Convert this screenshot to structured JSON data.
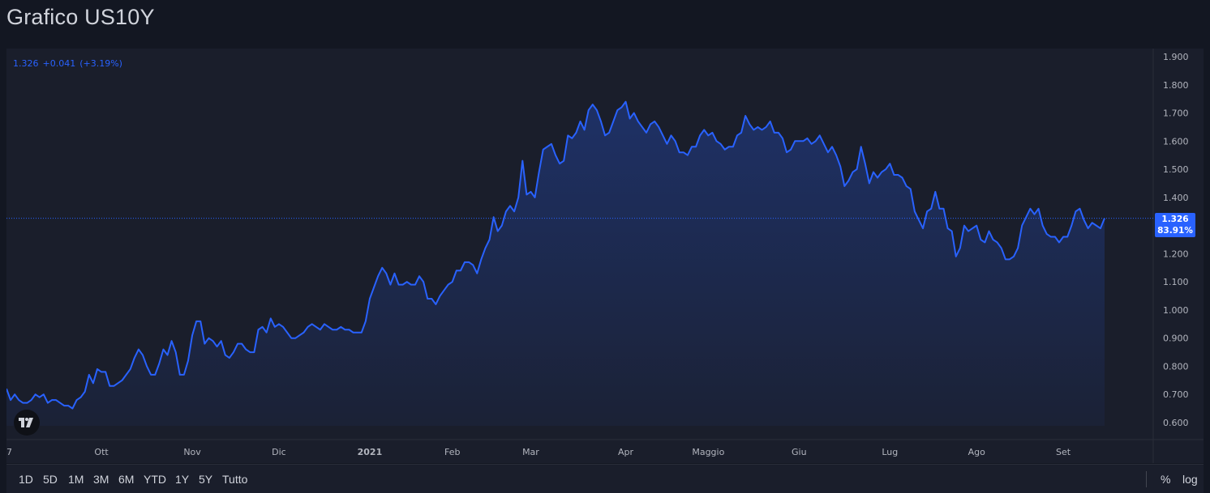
{
  "header": {
    "title": "Grafico US10Y"
  },
  "legend": {
    "value": "1.326",
    "change": "+0.041",
    "change_pct": "(+3.19%)"
  },
  "badge": {
    "price": "1.326",
    "percent": "83.91%"
  },
  "colors": {
    "line": "#2962ff",
    "background": "#131722",
    "panel": "#1a1e2b",
    "text": "#b2b5be"
  },
  "range_buttons": [
    "1D",
    "5D",
    "1M",
    "3M",
    "6M",
    "YTD",
    "1Y",
    "5Y",
    "Tutto"
  ],
  "right_controls": {
    "percent": "%",
    "log": "log"
  },
  "logo": {
    "icon": "tradingview-logo-icon"
  },
  "chart_data": {
    "type": "area",
    "title": "Grafico US10Y",
    "xlabel": "",
    "ylabel": "",
    "ylim": [
      0.55,
      1.95
    ],
    "y_ticks": [
      "1.900",
      "1.800",
      "1.700",
      "1.600",
      "1.500",
      "1.400",
      "1.300",
      "1.200",
      "1.100",
      "1.000",
      "0.900",
      "0.800",
      "0.700",
      "0.600"
    ],
    "x_tick_labels": [
      "7",
      "Ott",
      "Nov",
      "Dic",
      "2021",
      "Feb",
      "Mar",
      "Apr",
      "Maggio",
      "Giu",
      "Lug",
      "Ago",
      "Set"
    ],
    "x_tick_index": [
      0,
      23,
      45,
      66,
      88,
      108,
      127,
      150,
      170,
      192,
      214,
      235,
      256
    ],
    "last_value": 1.326,
    "grid": false,
    "series": [
      {
        "values": [
          0.72,
          0.68,
          0.7,
          0.68,
          0.67,
          0.67,
          0.68,
          0.7,
          0.69,
          0.7,
          0.67,
          0.68,
          0.68,
          0.67,
          0.66,
          0.66,
          0.65,
          0.68,
          0.69,
          0.71,
          0.77,
          0.74,
          0.79,
          0.78,
          0.78,
          0.73,
          0.73,
          0.74,
          0.75,
          0.77,
          0.79,
          0.83,
          0.86,
          0.84,
          0.8,
          0.77,
          0.77,
          0.81,
          0.86,
          0.84,
          0.89,
          0.85,
          0.77,
          0.77,
          0.82,
          0.91,
          0.96,
          0.96,
          0.88,
          0.9,
          0.89,
          0.87,
          0.89,
          0.84,
          0.83,
          0.85,
          0.88,
          0.88,
          0.86,
          0.85,
          0.85,
          0.93,
          0.94,
          0.92,
          0.97,
          0.94,
          0.95,
          0.94,
          0.92,
          0.9,
          0.9,
          0.91,
          0.92,
          0.94,
          0.95,
          0.94,
          0.93,
          0.95,
          0.94,
          0.93,
          0.93,
          0.94,
          0.93,
          0.93,
          0.92,
          0.92,
          0.92,
          0.96,
          1.04,
          1.08,
          1.12,
          1.15,
          1.13,
          1.09,
          1.13,
          1.09,
          1.09,
          1.1,
          1.09,
          1.09,
          1.12,
          1.1,
          1.04,
          1.04,
          1.02,
          1.05,
          1.07,
          1.09,
          1.1,
          1.14,
          1.14,
          1.17,
          1.17,
          1.16,
          1.13,
          1.18,
          1.22,
          1.25,
          1.33,
          1.28,
          1.3,
          1.35,
          1.37,
          1.35,
          1.4,
          1.53,
          1.41,
          1.42,
          1.4,
          1.49,
          1.57,
          1.58,
          1.59,
          1.55,
          1.52,
          1.53,
          1.62,
          1.61,
          1.63,
          1.67,
          1.64,
          1.71,
          1.73,
          1.71,
          1.67,
          1.62,
          1.63,
          1.67,
          1.71,
          1.72,
          1.74,
          1.68,
          1.7,
          1.67,
          1.65,
          1.63,
          1.66,
          1.67,
          1.65,
          1.62,
          1.59,
          1.62,
          1.6,
          1.56,
          1.56,
          1.55,
          1.58,
          1.58,
          1.62,
          1.64,
          1.62,
          1.63,
          1.6,
          1.59,
          1.57,
          1.58,
          1.58,
          1.62,
          1.63,
          1.69,
          1.66,
          1.64,
          1.65,
          1.64,
          1.65,
          1.67,
          1.63,
          1.63,
          1.61,
          1.56,
          1.57,
          1.6,
          1.6,
          1.6,
          1.61,
          1.59,
          1.6,
          1.62,
          1.59,
          1.56,
          1.58,
          1.55,
          1.51,
          1.44,
          1.46,
          1.49,
          1.5,
          1.58,
          1.52,
          1.45,
          1.49,
          1.47,
          1.49,
          1.5,
          1.52,
          1.48,
          1.48,
          1.47,
          1.44,
          1.43,
          1.35,
          1.32,
          1.29,
          1.35,
          1.36,
          1.42,
          1.36,
          1.36,
          1.29,
          1.28,
          1.19,
          1.22,
          1.3,
          1.28,
          1.29,
          1.3,
          1.25,
          1.24,
          1.28,
          1.25,
          1.24,
          1.22,
          1.18,
          1.18,
          1.19,
          1.22,
          1.3,
          1.33,
          1.36,
          1.34,
          1.36,
          1.3,
          1.27,
          1.26,
          1.26,
          1.24,
          1.26,
          1.26,
          1.3,
          1.35,
          1.36,
          1.32,
          1.29,
          1.31,
          1.3,
          1.29,
          1.326
        ]
      }
    ]
  }
}
